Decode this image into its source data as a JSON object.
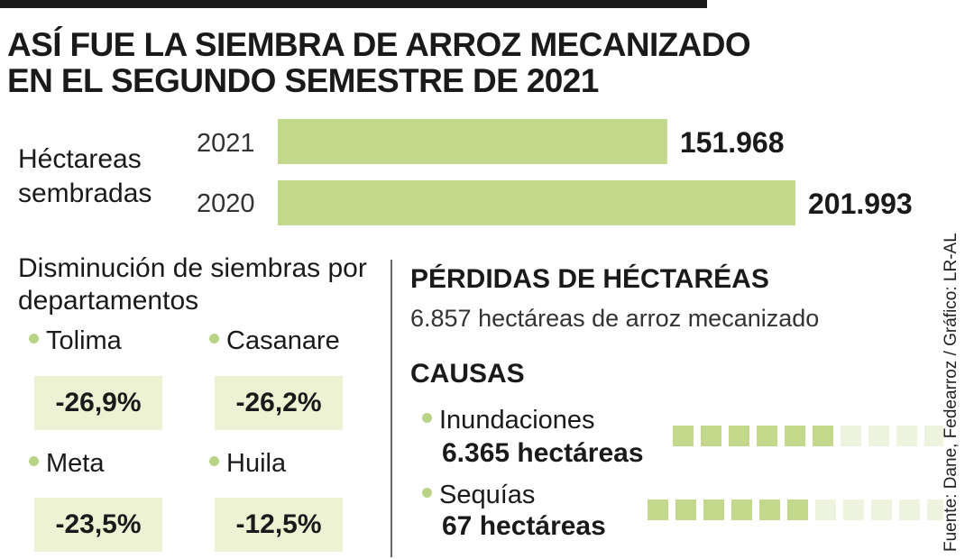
{
  "title_line1": "ASÍ FUE LA SIEMBRA DE ARROZ MECANIZADO",
  "title_line2": "EN EL SEGUNDO SEMESTRE DE 2021",
  "hectares_label": "Héctareas sembradas",
  "chart_data": {
    "type": "bar",
    "orientation": "horizontal",
    "categories": [
      "2021",
      "2020"
    ],
    "values": [
      151968,
      201993
    ],
    "value_labels": [
      "151.968",
      "201.993"
    ],
    "color": "#c2d98c"
  },
  "departments": {
    "heading": "Disminución de siembras por departamentos",
    "items": [
      {
        "name": "Tolima",
        "change": "-26,9%"
      },
      {
        "name": "Casanare",
        "change": "-26,2%"
      },
      {
        "name": "Meta",
        "change": "-23,5%"
      },
      {
        "name": "Huila",
        "change": "-12,5%"
      }
    ]
  },
  "losses": {
    "heading": "PÉRDIDAS DE HÉCTARÉAS",
    "subtitle": "6.857 hectáreas de arroz mecanizado"
  },
  "causes": {
    "heading": "CAUSAS",
    "items": [
      {
        "name": "Inundaciones",
        "value": "6.365 hectáreas",
        "filled": 6,
        "total": 10
      },
      {
        "name": "Sequías",
        "value": "67 hectáreas",
        "filled": 6,
        "total": 11
      }
    ]
  },
  "source": "Fuente: Dane, Fedearroz / Gráfico: LR-AL",
  "colors": {
    "accent_green": "#c2d98c",
    "light_green": "#eef2d4",
    "faded_square": "#eef3e0"
  }
}
